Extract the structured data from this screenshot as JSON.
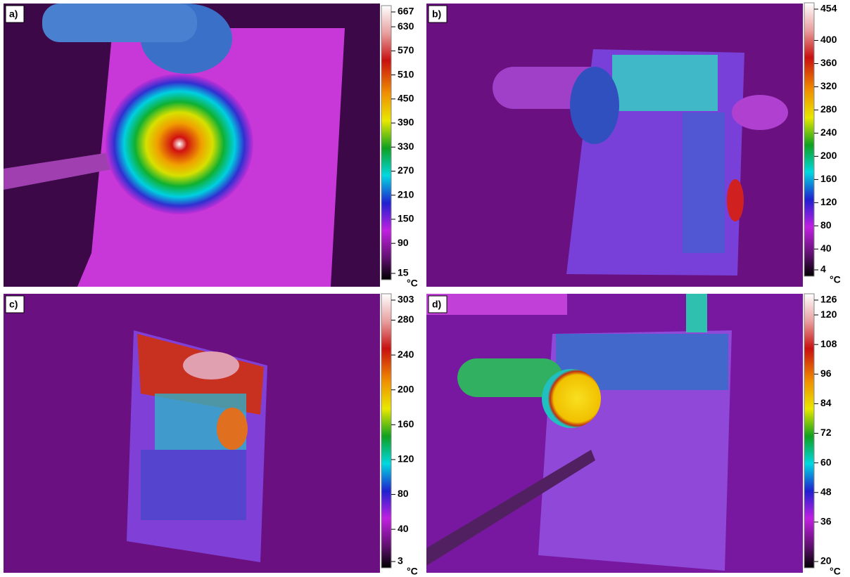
{
  "panels": [
    {
      "label": "a)",
      "ticks": [
        667,
        630,
        570,
        510,
        450,
        390,
        330,
        270,
        210,
        150,
        90,
        15
      ],
      "unit": "°C"
    },
    {
      "label": "b)",
      "ticks": [
        454,
        400,
        360,
        320,
        280,
        240,
        200,
        160,
        120,
        80,
        40,
        4
      ],
      "unit": "°C"
    },
    {
      "label": "c)",
      "ticks": [
        303,
        280,
        240,
        200,
        160,
        120,
        80,
        40,
        3
      ],
      "unit": "°C"
    },
    {
      "label": "d)",
      "ticks": [
        126,
        120,
        108,
        96,
        84,
        72,
        60,
        48,
        36,
        20
      ],
      "unit": "°C"
    }
  ]
}
